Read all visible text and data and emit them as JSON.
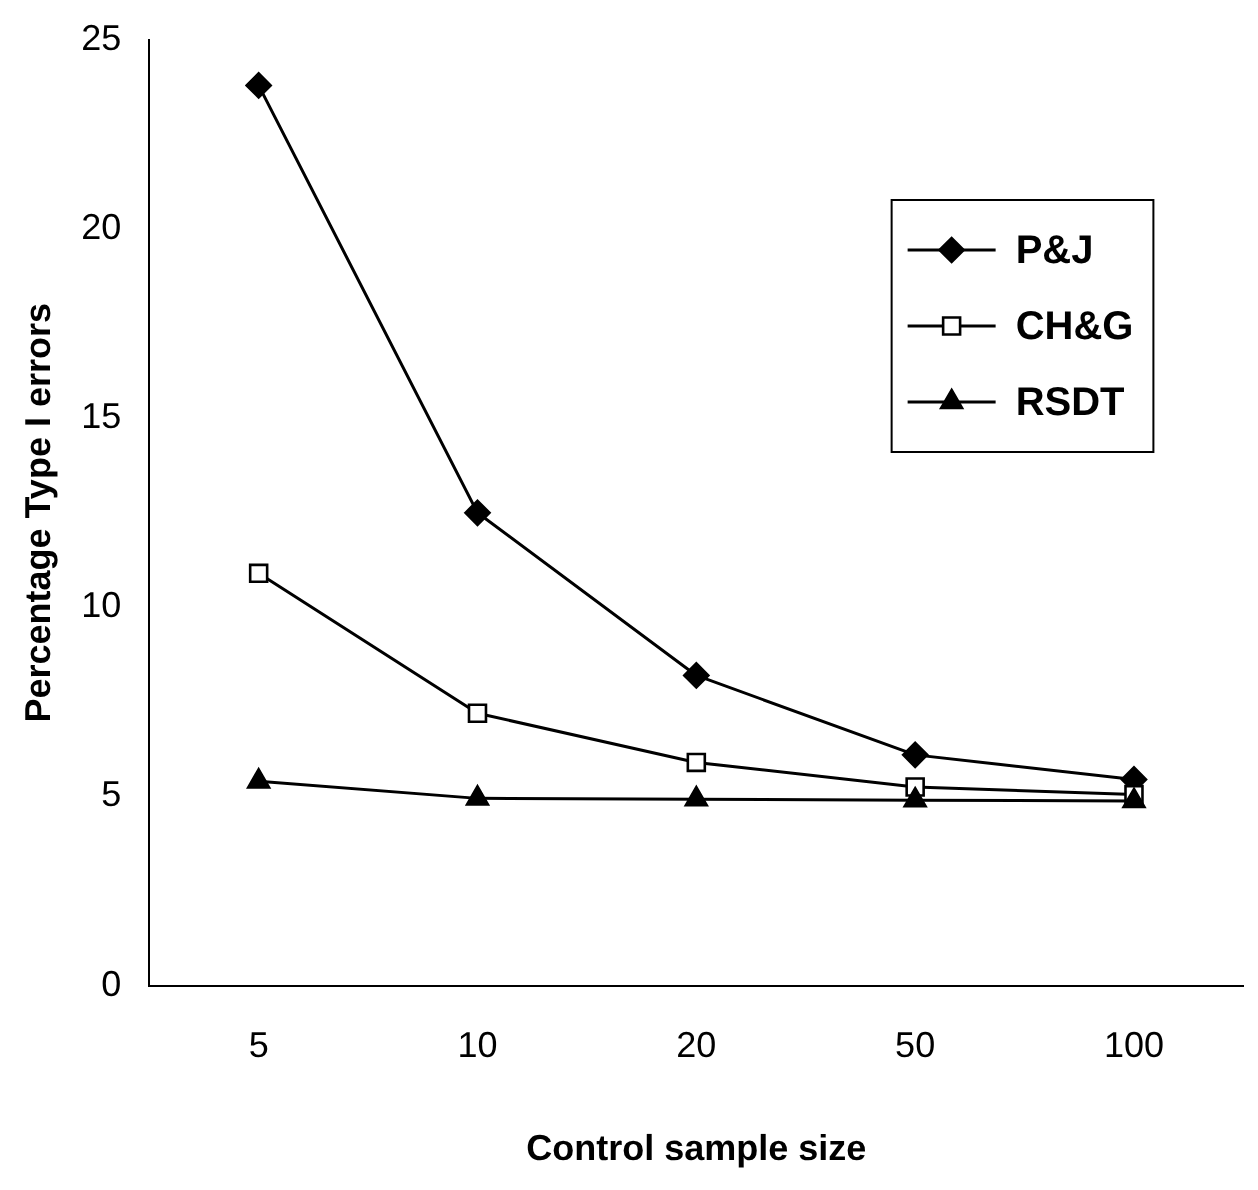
{
  "chart_data": {
    "type": "line",
    "xlabel": "Control sample size",
    "ylabel": "Percentage Type I errors",
    "categories": [
      "5",
      "10",
      "20",
      "50",
      "100"
    ],
    "ylim": [
      0,
      25
    ],
    "yticks": [
      0,
      5,
      10,
      15,
      20,
      25
    ],
    "grid": false,
    "legend": "top right",
    "line_style": "solid",
    "series": [
      {
        "name": "P&J",
        "color": "#000000",
        "marker": "diamond",
        "values": [
          23.8,
          12.5,
          8.2,
          6.1,
          5.45
        ]
      },
      {
        "name": "CH&G",
        "color": "#000000",
        "marker": "square",
        "values": [
          10.9,
          7.2,
          5.9,
          5.25,
          5.05
        ]
      },
      {
        "name": "RSDT",
        "color": "#000000",
        "marker": "triangle",
        "values": [
          5.4,
          4.95,
          4.93,
          4.9,
          4.88
        ]
      }
    ]
  }
}
